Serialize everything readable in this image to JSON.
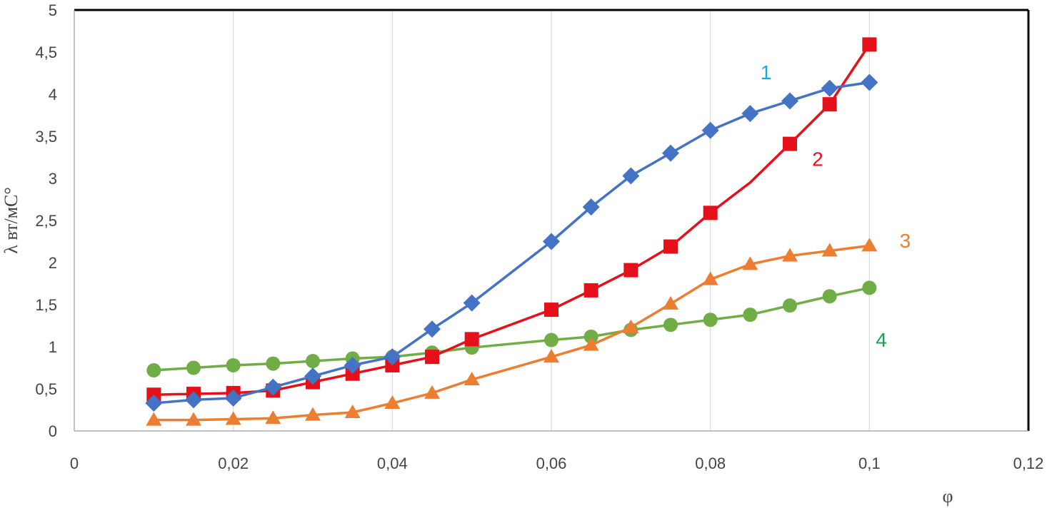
{
  "chart_data": {
    "type": "line",
    "title": "",
    "xlabel": "φ",
    "ylabel": "λ вт/мС°",
    "xlim": [
      0,
      0.12
    ],
    "ylim": [
      0,
      5
    ],
    "xticks": [
      0,
      0.02,
      0.04,
      0.06,
      0.08,
      0.1,
      0.12
    ],
    "xtick_labels": [
      "0",
      "0,02",
      "0,04",
      "0,06",
      "0,08",
      "0,1",
      "0,12"
    ],
    "yticks": [
      0,
      0.5,
      1,
      1.5,
      2,
      2.5,
      3,
      3.5,
      4,
      4.5,
      5
    ],
    "ytick_labels": [
      "0",
      "0,5",
      "1",
      "1,5",
      "2",
      "2,5",
      "3",
      "3,5",
      "4",
      "4,5",
      "5"
    ],
    "grid": "vertical",
    "legend": "none",
    "series": [
      {
        "name": "1",
        "color": "#4472c4",
        "marker": "diamond",
        "x": [
          0.01,
          0.015,
          0.02,
          0.025,
          0.03,
          0.035,
          0.04,
          0.045,
          0.05,
          0.06,
          0.065,
          0.07,
          0.075,
          0.08,
          0.085,
          0.09,
          0.095,
          0.1
        ],
        "y": [
          0.33,
          0.37,
          0.39,
          0.52,
          0.65,
          0.78,
          0.88,
          1.21,
          1.52,
          2.25,
          2.66,
          3.03,
          3.3,
          3.57,
          3.77,
          3.92,
          4.07,
          4.14
        ],
        "label_color": "#1aa7d8",
        "label_at": [
          0.087,
          4.18
        ]
      },
      {
        "name": "2",
        "color": "#e5101a",
        "marker": "square",
        "x": [
          0.01,
          0.015,
          0.02,
          0.025,
          0.03,
          0.035,
          0.04,
          0.045,
          0.05,
          0.06,
          0.065,
          0.07,
          0.075,
          0.08,
          0.085,
          0.09,
          0.095,
          0.1
        ],
        "y": [
          0.43,
          0.44,
          0.45,
          0.48,
          0.58,
          0.68,
          0.78,
          0.88,
          1.09,
          1.44,
          1.67,
          1.91,
          2.19,
          2.59,
          2.95,
          3.41,
          3.88,
          4.59
        ],
        "marker_skip": [
          0.085
        ],
        "label_color": "#e5101a",
        "label_at": [
          0.0935,
          3.15
        ]
      },
      {
        "name": "3",
        "color": "#ed7d31",
        "marker": "triangle",
        "x": [
          0.01,
          0.015,
          0.02,
          0.025,
          0.03,
          0.035,
          0.04,
          0.045,
          0.05,
          0.06,
          0.065,
          0.07,
          0.075,
          0.08,
          0.085,
          0.09,
          0.095,
          0.1
        ],
        "y": [
          0.13,
          0.13,
          0.14,
          0.15,
          0.19,
          0.22,
          0.33,
          0.45,
          0.61,
          0.88,
          1.02,
          1.23,
          1.51,
          1.8,
          1.98,
          2.08,
          2.14,
          2.2
        ],
        "label_color": "#ed7d31",
        "label_at": [
          0.1045,
          2.18
        ]
      },
      {
        "name": "4",
        "color": "#70ad47",
        "marker": "circle",
        "x": [
          0.01,
          0.015,
          0.02,
          0.025,
          0.03,
          0.035,
          0.04,
          0.045,
          0.05,
          0.06,
          0.065,
          0.07,
          0.075,
          0.08,
          0.085,
          0.09,
          0.095,
          0.1
        ],
        "y": [
          0.72,
          0.75,
          0.78,
          0.8,
          0.83,
          0.86,
          0.88,
          0.93,
          0.99,
          1.08,
          1.12,
          1.2,
          1.26,
          1.32,
          1.38,
          1.49,
          1.6,
          1.7
        ],
        "label_color": "#1f9d55",
        "label_at": [
          0.1015,
          1.0
        ]
      }
    ]
  }
}
